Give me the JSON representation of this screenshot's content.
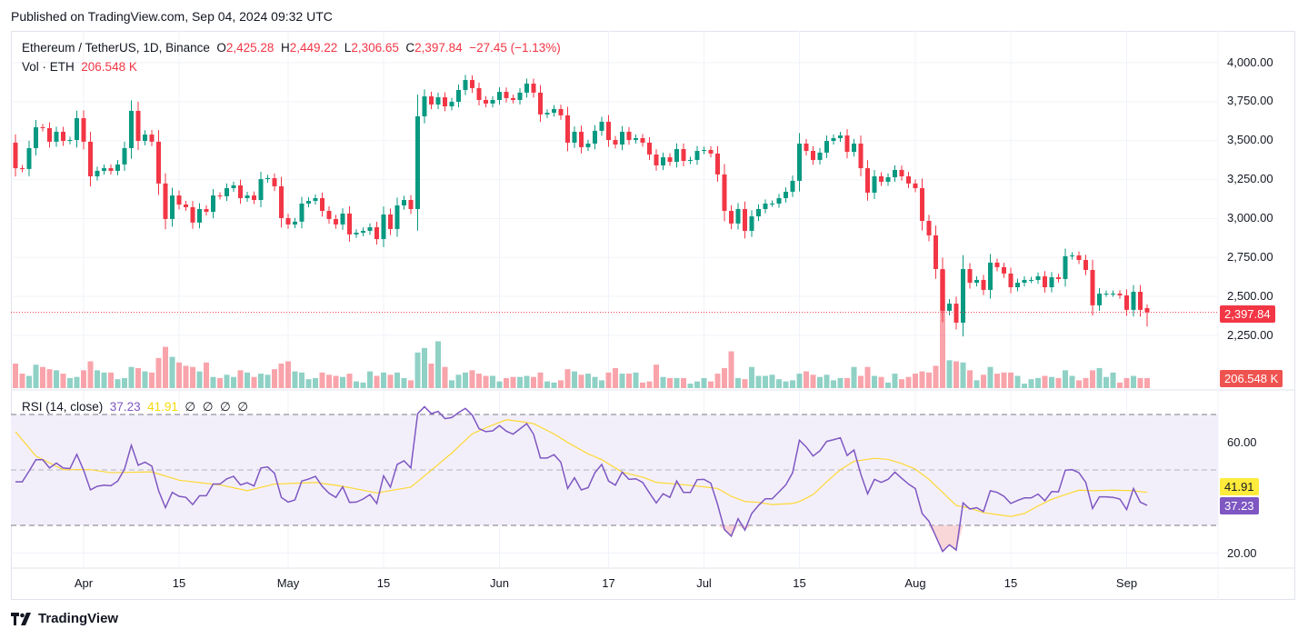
{
  "published": "Published on TradingView.com, Sep 04, 2024 09:32 UTC",
  "legend": {
    "symbol": "Ethereum / TetherUS, 1D, Binance",
    "o_label": "O",
    "o": "2,425.28",
    "h_label": "H",
    "h": "2,449.22",
    "l_label": "L",
    "l": "2,306.65",
    "c_label": "C",
    "c": "2,397.84",
    "change": "−27.45 (−1.13%)",
    "vol_label": "Vol · ETH",
    "vol": "206.548 K"
  },
  "rsi_legend": {
    "label": "RSI (14, close)",
    "rsi": "37.23",
    "ma": "41.91",
    "empty": [
      "∅",
      "∅",
      "∅",
      "∅"
    ]
  },
  "price_axis": [
    "4,000.00",
    "3,750.00",
    "3,500.00",
    "3,250.00",
    "3,000.00",
    "2,750.00",
    "2,500.00",
    "2,250.00"
  ],
  "rsi_axis": [
    "60.00",
    "20.00"
  ],
  "badges": {
    "price": "2,397.84",
    "volume": "206.548 K",
    "rsi_ma": "41.91",
    "rsi": "37.23"
  },
  "time_axis": [
    {
      "label": "Apr",
      "date": "2024-04-01"
    },
    {
      "label": "15",
      "date": "2024-04-15"
    },
    {
      "label": "May",
      "date": "2024-05-01"
    },
    {
      "label": "15",
      "date": "2024-05-15"
    },
    {
      "label": "Jun",
      "date": "2024-06-01"
    },
    {
      "label": "17",
      "date": "2024-06-17"
    },
    {
      "label": "Jul",
      "date": "2024-07-01"
    },
    {
      "label": "15",
      "date": "2024-07-15"
    },
    {
      "label": "Aug",
      "date": "2024-08-01"
    },
    {
      "label": "15",
      "date": "2024-08-15"
    },
    {
      "label": "Sep",
      "date": "2024-09-01"
    }
  ],
  "footer": {
    "brand": "TradingView"
  },
  "colors": {
    "up": "#089981",
    "down": "#f23645",
    "rsi": "#7e57c2",
    "rsi_ma": "#fdd835",
    "band": "#f3effa",
    "volume_badge": "#ef5350",
    "rsi_ma_badge": "#ffeb3b"
  },
  "chart_data": {
    "type": "candlestick",
    "price_range": [
      2250,
      4000
    ],
    "rsi_range": [
      20,
      70
    ],
    "rsi_bands": [
      30,
      50,
      70
    ],
    "first_open": 3487,
    "last_candle": {
      "open": 2425.28,
      "high": 2449.22,
      "low": 2306.65,
      "close": 2397.84
    },
    "months": [
      {
        "month": "2024-03",
        "first_day": 22,
        "close": [
          3323,
          3318,
          3452,
          3586,
          3580,
          3493,
          3557,
          3498,
          3504,
          3644
        ],
        "volume_k": [
          505,
          298,
          252,
          482,
          436,
          390,
          367,
          298,
          207,
          230
        ],
        "rsi": [
          45.7,
          45.7,
          49.6,
          53.7,
          53.7,
          50.7,
          52.5,
          50.7,
          50.5,
          55.6
        ]
      },
      {
        "month": "2024-04",
        "first_day": 1,
        "close": [
          3493,
          3271,
          3306,
          3323,
          3306,
          3347,
          3452,
          3691,
          3498,
          3539,
          3493,
          3225,
          2997,
          3148,
          3090,
          3073,
          2974,
          3061,
          3043,
          3148,
          3143,
          3195,
          3213,
          3131,
          3148,
          3119,
          3253,
          3259,
          3207,
          3003
        ],
        "volume_k": [
          367,
          551,
          367,
          321,
          321,
          184,
          207,
          436,
          413,
          344,
          321,
          620,
          849,
          643,
          528,
          459,
          436,
          344,
          528,
          230,
          207,
          275,
          230,
          367,
          321,
          230,
          298,
          275,
          390,
          505
        ],
        "rsi": [
          49.9,
          42.8,
          44.1,
          44.5,
          44.3,
          46.0,
          50.3,
          58.9,
          51.7,
          52.8,
          51.4,
          42.5,
          36.4,
          41.9,
          40.5,
          40.1,
          37.5,
          40.7,
          40.7,
          44.9,
          44.9,
          46.8,
          47.7,
          44.6,
          45.4,
          44.2,
          50.7,
          51.1,
          48.8,
          40.1
        ]
      },
      {
        "month": "2024-05",
        "first_day": 1,
        "close": [
          2962,
          2980,
          3096,
          3113,
          3131,
          3049,
          2997,
          2962,
          3032,
          2898,
          2909,
          2921,
          2944,
          2868,
          3026,
          2933,
          3084,
          3119,
          3061,
          3656,
          3784,
          3732,
          3778,
          3720,
          3749,
          3825,
          3889,
          3837,
          3761,
          3738,
          3761
        ],
        "volume_k": [
          551,
          344,
          321,
          184,
          207,
          321,
          275,
          252,
          230,
          298,
          138,
          115,
          344,
          252,
          321,
          275,
          321,
          207,
          161,
          734,
          826,
          505,
          964,
          436,
          161,
          275,
          321,
          367,
          298,
          252,
          252
        ],
        "rsi": [
          38.4,
          39.2,
          46.0,
          46.7,
          47.7,
          44.1,
          41.6,
          40.1,
          43.9,
          38.3,
          38.4,
          39.5,
          41.1,
          37.9,
          47.9,
          43.8,
          52.0,
          53.3,
          50.7,
          70.3,
          72.8,
          70.3,
          71.1,
          68.5,
          68.9,
          70.7,
          72.2,
          69.8,
          64.9,
          63.8,
          64.1
        ]
      },
      {
        "month": "2024-06",
        "first_day": 1,
        "close": [
          3813,
          3773,
          3761,
          3808,
          3866,
          3808,
          3668,
          3679,
          3703,
          3662,
          3487,
          3557,
          3458,
          3481,
          3563,
          3621,
          3504,
          3475,
          3557,
          3504,
          3516,
          3487,
          3411,
          3341,
          3393,
          3364,
          3446,
          3370,
          3376,
          3434
        ],
        "volume_k": [
          138,
          207,
          230,
          230,
          252,
          230,
          321,
          138,
          115,
          161,
          390,
          344,
          275,
          298,
          230,
          161,
          321,
          413,
          298,
          298,
          321,
          115,
          138,
          482,
          230,
          207,
          207,
          207,
          92,
          138
        ],
        "rsi": [
          66.0,
          64.0,
          62.9,
          64.8,
          66.7,
          62.9,
          54.3,
          54.3,
          55.5,
          52.8,
          43.3,
          47.2,
          42.8,
          43.6,
          49.0,
          52.0,
          46.0,
          44.5,
          49.2,
          46.6,
          46.8,
          45.5,
          41.7,
          38.1,
          41.4,
          40.1,
          46.0,
          41.9,
          41.9,
          46.5
        ]
      },
      {
        "month": "2024-07",
        "first_day": 1,
        "close": [
          3440,
          3417,
          3283,
          3049,
          2968,
          3061,
          2921,
          3014,
          3061,
          3096,
          3096,
          3131,
          3172,
          3242,
          3481,
          3434,
          3376,
          3423,
          3498,
          3516,
          3533,
          3428,
          3481,
          3323,
          3166,
          3271,
          3236,
          3265,
          3312,
          3271,
          3225
        ],
        "volume_k": [
          207,
          138,
          298,
          413,
          757,
          207,
          184,
          436,
          252,
          252,
          275,
          184,
          138,
          161,
          298,
          344,
          275,
          230,
          275,
          161,
          207,
          207,
          436,
          252,
          436,
          252,
          230,
          115,
          298,
          184,
          230
        ],
        "rsi": [
          46.6,
          45.2,
          37.5,
          28.5,
          26.1,
          32.4,
          28.3,
          34.3,
          37.2,
          39.6,
          39.6,
          42.1,
          44.6,
          49.0,
          60.7,
          58.3,
          55.0,
          56.9,
          60.3,
          60.9,
          61.6,
          55.2,
          57.2,
          48.5,
          41.4,
          46.6,
          45.5,
          46.6,
          49.2,
          47.0,
          44.9
        ]
      },
      {
        "month": "2024-08",
        "first_day": 1,
        "close": [
          3195,
          2985,
          2892,
          2676,
          2408,
          2454,
          2332,
          2676,
          2588,
          2606,
          2542,
          2717,
          2688,
          2647,
          2559,
          2588,
          2606,
          2606,
          2629,
          2559,
          2623,
          2612,
          2758,
          2763,
          2734,
          2670,
          2443,
          2518,
          2518,
          2518,
          2507
        ],
        "volume_k": [
          298,
          344,
          321,
          459,
          2420,
          574,
          551,
          528,
          367,
          161,
          275,
          436,
          298,
          321,
          321,
          252,
          92,
          184,
          207,
          252,
          230,
          207,
          367,
          252,
          161,
          207,
          367,
          413,
          230,
          321,
          115
        ],
        "rsi": [
          43.3,
          34.3,
          31.5,
          26.1,
          20.6,
          23.0,
          21.1,
          38.1,
          35.9,
          36.4,
          35.0,
          42.5,
          41.9,
          40.5,
          37.9,
          39.0,
          39.9,
          39.9,
          41.3,
          38.9,
          42.2,
          42.1,
          49.9,
          50.1,
          49.0,
          45.5,
          36.1,
          40.3,
          40.3,
          40.1,
          39.5
        ]
      },
      {
        "month": "2024-09",
        "first_day": 1,
        "close": [
          2414,
          2530,
          2414,
          2397.84
        ],
        "volume_k": [
          207,
          252,
          207,
          206.548
        ],
        "rsi": [
          35.7,
          43.3,
          38.4,
          37.23
        ]
      }
    ],
    "rsi_ma": [
      [
        "2024-03-22",
        63.8
      ],
      [
        "2024-03-25",
        55.0
      ],
      [
        "2024-03-29",
        50.1
      ],
      [
        "2024-04-02",
        50.1
      ],
      [
        "2024-04-05",
        49.0
      ],
      [
        "2024-04-11",
        49.3
      ],
      [
        "2024-04-15",
        46.3
      ],
      [
        "2024-04-21",
        44.6
      ],
      [
        "2024-04-25",
        42.5
      ],
      [
        "2024-04-29",
        44.9
      ],
      [
        "2024-05-05",
        45.5
      ],
      [
        "2024-05-09",
        44.1
      ],
      [
        "2024-05-14",
        41.7
      ],
      [
        "2024-05-19",
        43.8
      ],
      [
        "2024-05-22",
        49.9
      ],
      [
        "2024-05-25",
        56.1
      ],
      [
        "2024-05-28",
        63.0
      ],
      [
        "2024-05-30",
        65.2
      ],
      [
        "2024-06-02",
        68.1
      ],
      [
        "2024-06-04",
        67.5
      ],
      [
        "2024-06-06",
        66.7
      ],
      [
        "2024-06-09",
        63.0
      ],
      [
        "2024-06-11",
        59.9
      ],
      [
        "2024-06-14",
        55.8
      ],
      [
        "2024-06-16",
        53.7
      ],
      [
        "2024-06-19",
        49.2
      ],
      [
        "2024-06-22",
        47.4
      ],
      [
        "2024-06-24",
        45.5
      ],
      [
        "2024-06-27",
        44.9
      ],
      [
        "2024-06-29",
        44.4
      ],
      [
        "2024-07-01",
        43.9
      ],
      [
        "2024-07-03",
        43.3
      ],
      [
        "2024-07-05",
        40.5
      ],
      [
        "2024-07-07",
        38.6
      ],
      [
        "2024-07-09",
        38.3
      ],
      [
        "2024-07-11",
        37.5
      ],
      [
        "2024-07-14",
        37.9
      ],
      [
        "2024-07-15",
        38.6
      ],
      [
        "2024-07-17",
        41.1
      ],
      [
        "2024-07-19",
        45.7
      ],
      [
        "2024-07-21",
        50.1
      ],
      [
        "2024-07-23",
        53.1
      ],
      [
        "2024-07-26",
        54.2
      ],
      [
        "2024-07-28",
        53.8
      ],
      [
        "2024-07-30",
        52.3
      ],
      [
        "2024-08-01",
        50.3
      ],
      [
        "2024-08-03",
        46.6
      ],
      [
        "2024-08-05",
        41.9
      ],
      [
        "2024-08-07",
        37.2
      ],
      [
        "2024-08-09",
        36.2
      ],
      [
        "2024-08-11",
        34.6
      ],
      [
        "2024-08-13",
        33.9
      ],
      [
        "2024-08-15",
        33.2
      ],
      [
        "2024-08-17",
        34.3
      ],
      [
        "2024-08-19",
        37.0
      ],
      [
        "2024-08-21",
        39.4
      ],
      [
        "2024-08-23",
        41.1
      ],
      [
        "2024-08-25",
        42.7
      ],
      [
        "2024-08-27",
        42.5
      ],
      [
        "2024-08-30",
        42.7
      ],
      [
        "2024-09-02",
        42.5
      ],
      [
        "2024-09-04",
        41.91
      ]
    ]
  }
}
